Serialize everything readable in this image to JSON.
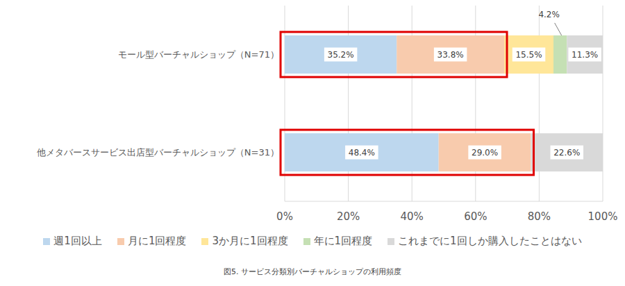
{
  "chart_data": {
    "type": "bar",
    "title": "図5. サービス分類別バーチャルショップの利用頻度",
    "orientation": "horizontal",
    "stacked": true,
    "data_labels": true,
    "grid": true,
    "legend": "bottom",
    "categories": [
      "モール型バーチャルショップ（N=71）",
      "他メタバースサービス出店型バーチャルショップ（N=31）"
    ],
    "series": [
      {
        "name": "週1回以上",
        "color": "#BDD7EE",
        "values": [
          35.2,
          48.4
        ],
        "value_labels": [
          "35.2%",
          "48.4%"
        ]
      },
      {
        "name": "月に1回程度",
        "color": "#F8CBAD",
        "values": [
          33.8,
          29.0
        ],
        "value_labels": [
          "33.8%",
          "29.0%"
        ]
      },
      {
        "name": "3か月に1回程度",
        "color": "#FFE699",
        "values": [
          15.5,
          0
        ],
        "value_labels": [
          "15.5%",
          ""
        ]
      },
      {
        "name": "年に1回程度",
        "color": "#C5E0B4",
        "values": [
          4.2,
          0
        ],
        "value_labels": [
          "4.2%",
          ""
        ]
      },
      {
        "name": "これまでに1回しか購入したことはない",
        "color": "#D9D9D9",
        "values": [
          11.3,
          22.6
        ],
        "value_labels": [
          "11.3%",
          "22.6%"
        ]
      }
    ],
    "xlim": [
      0,
      100
    ],
    "xticks": [
      {
        "value": 0,
        "label": "0%"
      },
      {
        "value": 20,
        "label": "20%"
      },
      {
        "value": 40,
        "label": "40%"
      },
      {
        "value": 60,
        "label": "60%"
      },
      {
        "value": 80,
        "label": "80%"
      },
      {
        "value": 100,
        "label": "100%"
      }
    ]
  }
}
